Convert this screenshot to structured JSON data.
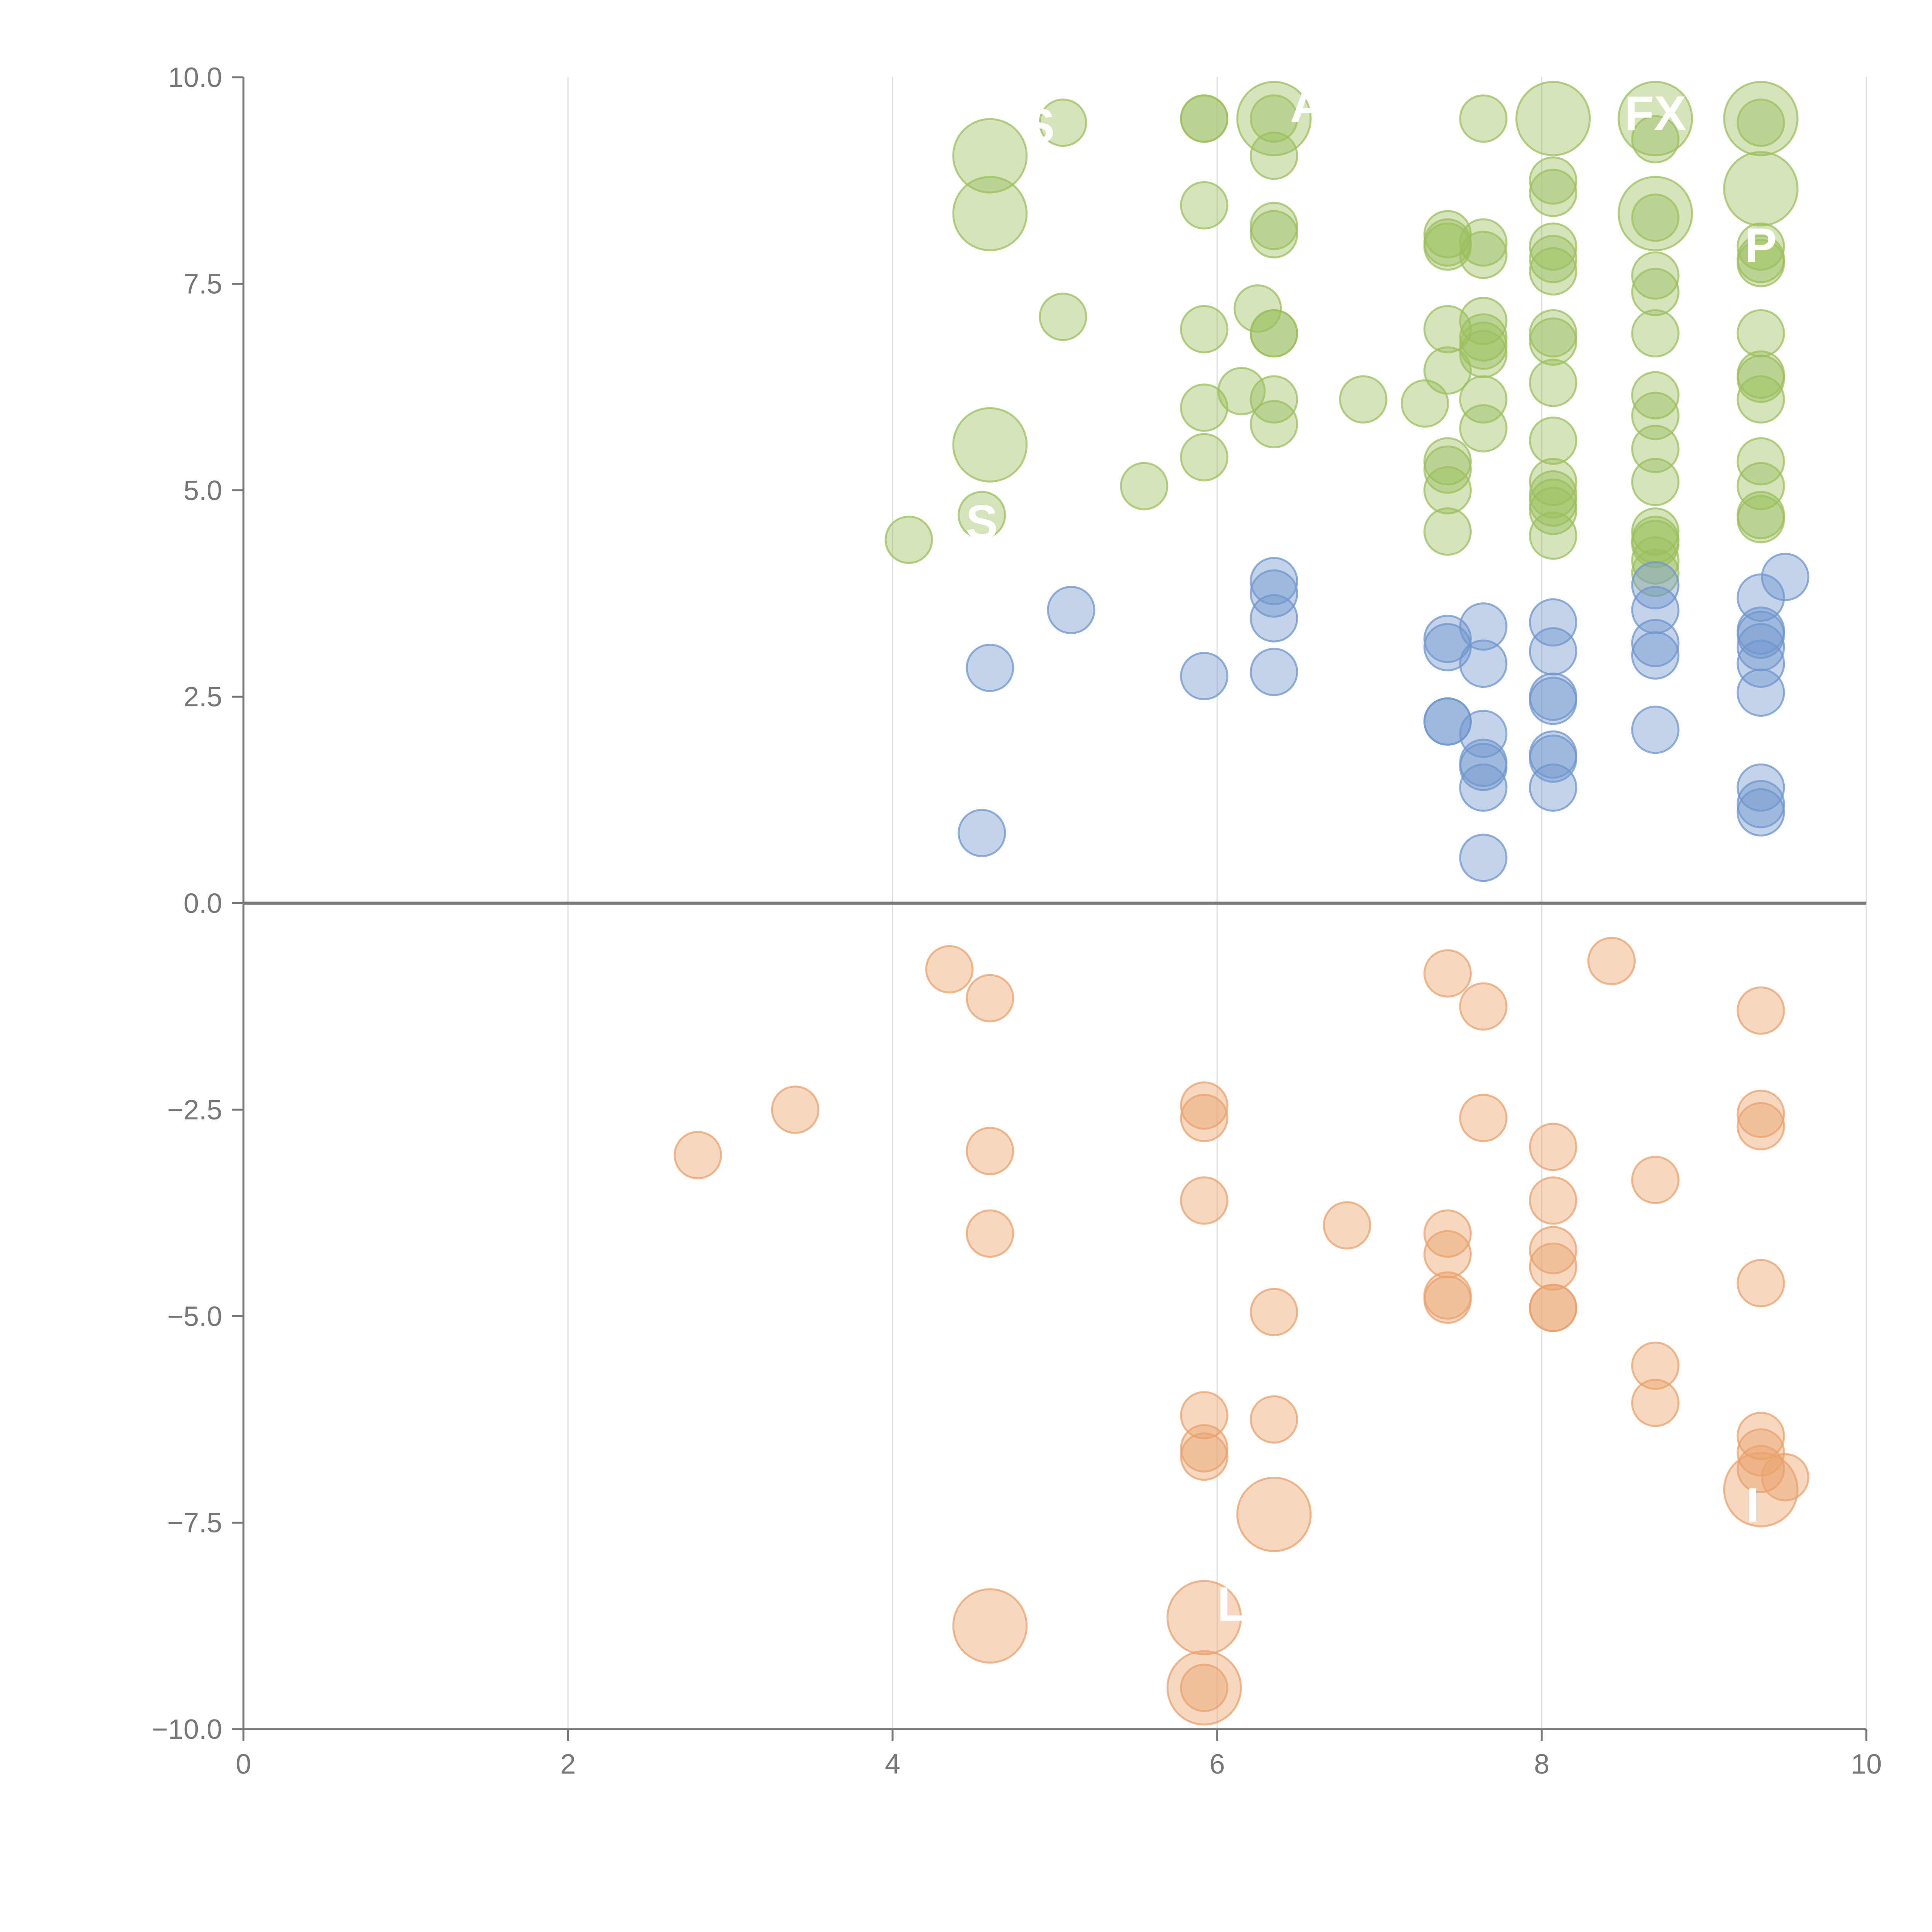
{
  "chart_data": {
    "type": "scatter",
    "title": "",
    "xlabel": "",
    "ylabel": "",
    "xlim": [
      0,
      10
    ],
    "ylim": [
      -10,
      10
    ],
    "grid": {
      "x": true,
      "y": false
    },
    "x_ticks": [
      0,
      2,
      4,
      6,
      8,
      10
    ],
    "y_ticks": [
      -10.0,
      -7.5,
      -5.0,
      -2.5,
      0.0,
      2.5,
      5.0,
      7.5,
      10.0
    ],
    "x_tick_labels": [
      "0",
      "2",
      "4",
      "6",
      "8",
      "10"
    ],
    "y_tick_labels": [
      "−10.0",
      "−7.5",
      "−5.0",
      "−2.5",
      "0.0",
      "2.5",
      "5.0",
      "7.5",
      "10.0"
    ],
    "series": [
      {
        "name": "green",
        "color": "#9cbf5d",
        "points": [
          {
            "x": 4.6,
            "y": 9.05,
            "r": 3
          },
          {
            "x": 4.6,
            "y": 8.35,
            "r": 3
          },
          {
            "x": 4.6,
            "y": 5.55,
            "r": 3
          },
          {
            "x": 5.05,
            "y": 9.45,
            "r": 1
          },
          {
            "x": 5.05,
            "y": 7.1,
            "r": 1
          },
          {
            "x": 5.55,
            "y": 5.05,
            "r": 1
          },
          {
            "x": 4.1,
            "y": 4.4,
            "r": 1
          },
          {
            "x": 4.55,
            "y": 4.7,
            "r": 1
          },
          {
            "x": 5.92,
            "y": 9.5,
            "r": 1
          },
          {
            "x": 5.92,
            "y": 9.5,
            "r": 1
          },
          {
            "x": 5.92,
            "y": 8.45,
            "r": 1
          },
          {
            "x": 5.92,
            "y": 6.95,
            "r": 1
          },
          {
            "x": 5.92,
            "y": 6.0,
            "r": 1
          },
          {
            "x": 5.92,
            "y": 5.4,
            "r": 1
          },
          {
            "x": 6.35,
            "y": 9.5,
            "r": 3
          },
          {
            "x": 6.35,
            "y": 9.5,
            "r": 1
          },
          {
            "x": 6.35,
            "y": 9.05,
            "r": 1
          },
          {
            "x": 6.35,
            "y": 8.2,
            "r": 1
          },
          {
            "x": 6.35,
            "y": 8.1,
            "r": 1
          },
          {
            "x": 6.35,
            "y": 6.9,
            "r": 1
          },
          {
            "x": 6.35,
            "y": 6.9,
            "r": 1
          },
          {
            "x": 6.35,
            "y": 6.1,
            "r": 1
          },
          {
            "x": 6.35,
            "y": 5.8,
            "r": 1
          },
          {
            "x": 6.25,
            "y": 7.2,
            "r": 1
          },
          {
            "x": 6.15,
            "y": 6.2,
            "r": 1
          },
          {
            "x": 6.9,
            "y": 6.1,
            "r": 1
          },
          {
            "x": 7.28,
            "y": 6.05,
            "r": 1
          },
          {
            "x": 7.42,
            "y": 8.1,
            "r": 1
          },
          {
            "x": 7.42,
            "y": 8.0,
            "r": 1
          },
          {
            "x": 7.42,
            "y": 7.95,
            "r": 1
          },
          {
            "x": 7.42,
            "y": 6.95,
            "r": 1
          },
          {
            "x": 7.42,
            "y": 6.45,
            "r": 1
          },
          {
            "x": 7.42,
            "y": 5.35,
            "r": 1
          },
          {
            "x": 7.42,
            "y": 5.25,
            "r": 1
          },
          {
            "x": 7.42,
            "y": 5.0,
            "r": 1
          },
          {
            "x": 7.42,
            "y": 4.5,
            "r": 1
          },
          {
            "x": 7.64,
            "y": 9.5,
            "r": 1
          },
          {
            "x": 7.64,
            "y": 8.0,
            "r": 1
          },
          {
            "x": 7.64,
            "y": 7.85,
            "r": 1
          },
          {
            "x": 7.64,
            "y": 7.05,
            "r": 1
          },
          {
            "x": 7.64,
            "y": 6.85,
            "r": 1
          },
          {
            "x": 7.64,
            "y": 6.75,
            "r": 1
          },
          {
            "x": 7.64,
            "y": 6.65,
            "r": 1
          },
          {
            "x": 7.64,
            "y": 6.1,
            "r": 1
          },
          {
            "x": 7.64,
            "y": 5.75,
            "r": 1
          },
          {
            "x": 8.07,
            "y": 9.5,
            "r": 3
          },
          {
            "x": 8.07,
            "y": 8.75,
            "r": 1
          },
          {
            "x": 8.07,
            "y": 8.6,
            "r": 1
          },
          {
            "x": 8.07,
            "y": 7.95,
            "r": 1
          },
          {
            "x": 8.07,
            "y": 7.8,
            "r": 1
          },
          {
            "x": 8.07,
            "y": 7.65,
            "r": 1
          },
          {
            "x": 8.07,
            "y": 6.9,
            "r": 1
          },
          {
            "x": 8.07,
            "y": 6.8,
            "r": 1
          },
          {
            "x": 8.07,
            "y": 6.3,
            "r": 1
          },
          {
            "x": 8.07,
            "y": 5.6,
            "r": 1
          },
          {
            "x": 8.07,
            "y": 5.1,
            "r": 1
          },
          {
            "x": 8.07,
            "y": 4.95,
            "r": 1
          },
          {
            "x": 8.07,
            "y": 4.85,
            "r": 1
          },
          {
            "x": 8.07,
            "y": 4.75,
            "r": 1
          },
          {
            "x": 8.07,
            "y": 4.45,
            "r": 1
          },
          {
            "x": 8.7,
            "y": 9.5,
            "r": 3
          },
          {
            "x": 8.7,
            "y": 9.25,
            "r": 1
          },
          {
            "x": 8.7,
            "y": 8.35,
            "r": 3
          },
          {
            "x": 8.7,
            "y": 8.3,
            "r": 1
          },
          {
            "x": 8.7,
            "y": 7.6,
            "r": 1
          },
          {
            "x": 8.7,
            "y": 7.4,
            "r": 1
          },
          {
            "x": 8.7,
            "y": 6.9,
            "r": 1
          },
          {
            "x": 8.7,
            "y": 6.15,
            "r": 1
          },
          {
            "x": 8.7,
            "y": 5.9,
            "r": 1
          },
          {
            "x": 8.7,
            "y": 5.5,
            "r": 1
          },
          {
            "x": 8.7,
            "y": 5.1,
            "r": 1
          },
          {
            "x": 8.7,
            "y": 4.5,
            "r": 1
          },
          {
            "x": 8.7,
            "y": 4.4,
            "r": 1
          },
          {
            "x": 8.7,
            "y": 4.35,
            "r": 1
          },
          {
            "x": 8.7,
            "y": 4.15,
            "r": 1
          },
          {
            "x": 8.7,
            "y": 4.0,
            "r": 1
          },
          {
            "x": 9.35,
            "y": 9.5,
            "r": 3
          },
          {
            "x": 9.35,
            "y": 9.45,
            "r": 1
          },
          {
            "x": 9.35,
            "y": 8.65,
            "r": 3
          },
          {
            "x": 9.35,
            "y": 7.95,
            "r": 1
          },
          {
            "x": 9.35,
            "y": 7.8,
            "r": 1
          },
          {
            "x": 9.35,
            "y": 7.75,
            "r": 1
          },
          {
            "x": 9.35,
            "y": 6.9,
            "r": 1
          },
          {
            "x": 9.35,
            "y": 6.4,
            "r": 1
          },
          {
            "x": 9.35,
            "y": 6.35,
            "r": 1
          },
          {
            "x": 9.35,
            "y": 6.1,
            "r": 1
          },
          {
            "x": 9.35,
            "y": 5.35,
            "r": 1
          },
          {
            "x": 9.35,
            "y": 5.05,
            "r": 1
          },
          {
            "x": 9.35,
            "y": 4.7,
            "r": 1
          },
          {
            "x": 9.35,
            "y": 4.65,
            "r": 1
          }
        ]
      },
      {
        "name": "blue",
        "color": "#6f95cc",
        "points": [
          {
            "x": 4.55,
            "y": 0.85,
            "r": 1
          },
          {
            "x": 4.6,
            "y": 2.85,
            "r": 1
          },
          {
            "x": 5.1,
            "y": 3.55,
            "r": 1
          },
          {
            "x": 5.92,
            "y": 2.75,
            "r": 1
          },
          {
            "x": 6.35,
            "y": 3.9,
            "r": 1
          },
          {
            "x": 6.35,
            "y": 3.75,
            "r": 1
          },
          {
            "x": 6.35,
            "y": 3.45,
            "r": 1
          },
          {
            "x": 6.35,
            "y": 2.8,
            "r": 1
          },
          {
            "x": 7.42,
            "y": 3.2,
            "r": 1
          },
          {
            "x": 7.42,
            "y": 3.1,
            "r": 1
          },
          {
            "x": 7.42,
            "y": 2.2,
            "r": 1
          },
          {
            "x": 7.42,
            "y": 2.2,
            "r": 1
          },
          {
            "x": 7.64,
            "y": 3.35,
            "r": 1
          },
          {
            "x": 7.64,
            "y": 2.9,
            "r": 1
          },
          {
            "x": 7.64,
            "y": 2.05,
            "r": 1
          },
          {
            "x": 7.64,
            "y": 1.7,
            "r": 1
          },
          {
            "x": 7.64,
            "y": 1.65,
            "r": 1
          },
          {
            "x": 7.64,
            "y": 1.4,
            "r": 1
          },
          {
            "x": 7.64,
            "y": 0.55,
            "r": 1
          },
          {
            "x": 8.07,
            "y": 3.4,
            "r": 1
          },
          {
            "x": 8.07,
            "y": 3.05,
            "r": 1
          },
          {
            "x": 8.07,
            "y": 2.5,
            "r": 1
          },
          {
            "x": 8.07,
            "y": 2.45,
            "r": 1
          },
          {
            "x": 8.07,
            "y": 1.8,
            "r": 1
          },
          {
            "x": 8.07,
            "y": 1.75,
            "r": 1
          },
          {
            "x": 8.07,
            "y": 1.4,
            "r": 1
          },
          {
            "x": 8.7,
            "y": 3.85,
            "r": 1
          },
          {
            "x": 8.7,
            "y": 3.55,
            "r": 1
          },
          {
            "x": 8.7,
            "y": 3.15,
            "r": 1
          },
          {
            "x": 8.7,
            "y": 3.0,
            "r": 1
          },
          {
            "x": 8.7,
            "y": 2.1,
            "r": 1
          },
          {
            "x": 9.35,
            "y": 3.7,
            "r": 1
          },
          {
            "x": 9.35,
            "y": 3.3,
            "r": 1
          },
          {
            "x": 9.35,
            "y": 3.25,
            "r": 1
          },
          {
            "x": 9.35,
            "y": 3.1,
            "r": 1
          },
          {
            "x": 9.35,
            "y": 2.9,
            "r": 1
          },
          {
            "x": 9.35,
            "y": 2.55,
            "r": 1
          },
          {
            "x": 9.35,
            "y": 1.4,
            "r": 1
          },
          {
            "x": 9.35,
            "y": 1.2,
            "r": 1
          },
          {
            "x": 9.35,
            "y": 1.1,
            "r": 1
          },
          {
            "x": 9.5,
            "y": 3.95,
            "r": 1
          }
        ]
      },
      {
        "name": "orange",
        "color": "#e9a26c",
        "points": [
          {
            "x": 2.8,
            "y": -3.05,
            "r": 1
          },
          {
            "x": 3.4,
            "y": -2.5,
            "r": 1
          },
          {
            "x": 4.35,
            "y": -0.8,
            "r": 1
          },
          {
            "x": 4.6,
            "y": -1.15,
            "r": 1
          },
          {
            "x": 4.6,
            "y": -3.0,
            "r": 1
          },
          {
            "x": 4.6,
            "y": -4.0,
            "r": 1
          },
          {
            "x": 4.6,
            "y": -8.75,
            "r": 3
          },
          {
            "x": 5.92,
            "y": -2.45,
            "r": 1
          },
          {
            "x": 5.92,
            "y": -2.6,
            "r": 1
          },
          {
            "x": 5.92,
            "y": -3.6,
            "r": 1
          },
          {
            "x": 5.92,
            "y": -6.2,
            "r": 1
          },
          {
            "x": 5.92,
            "y": -6.6,
            "r": 1
          },
          {
            "x": 5.92,
            "y": -6.7,
            "r": 1
          },
          {
            "x": 5.92,
            "y": -8.65,
            "r": 3
          },
          {
            "x": 5.92,
            "y": -9.5,
            "r": 3
          },
          {
            "x": 5.92,
            "y": -9.5,
            "r": 1
          },
          {
            "x": 6.35,
            "y": -4.95,
            "r": 1
          },
          {
            "x": 6.35,
            "y": -6.25,
            "r": 1
          },
          {
            "x": 6.35,
            "y": -7.4,
            "r": 3
          },
          {
            "x": 6.8,
            "y": -3.9,
            "r": 1
          },
          {
            "x": 7.42,
            "y": -0.85,
            "r": 1
          },
          {
            "x": 7.42,
            "y": -4.0,
            "r": 1
          },
          {
            "x": 7.42,
            "y": -4.25,
            "r": 1
          },
          {
            "x": 7.42,
            "y": -4.75,
            "r": 1
          },
          {
            "x": 7.42,
            "y": -4.8,
            "r": 1
          },
          {
            "x": 7.64,
            "y": -1.25,
            "r": 1
          },
          {
            "x": 7.64,
            "y": -2.6,
            "r": 1
          },
          {
            "x": 8.07,
            "y": -2.95,
            "r": 1
          },
          {
            "x": 8.07,
            "y": -3.6,
            "r": 1
          },
          {
            "x": 8.07,
            "y": -4.2,
            "r": 1
          },
          {
            "x": 8.07,
            "y": -4.4,
            "r": 1
          },
          {
            "x": 8.07,
            "y": -4.9,
            "r": 1
          },
          {
            "x": 8.07,
            "y": -4.9,
            "r": 1
          },
          {
            "x": 8.43,
            "y": -0.7,
            "r": 1
          },
          {
            "x": 8.7,
            "y": -3.35,
            "r": 1
          },
          {
            "x": 8.7,
            "y": -5.6,
            "r": 1
          },
          {
            "x": 8.7,
            "y": -6.05,
            "r": 1
          },
          {
            "x": 9.35,
            "y": -1.3,
            "r": 1
          },
          {
            "x": 9.35,
            "y": -2.55,
            "r": 1
          },
          {
            "x": 9.35,
            "y": -2.7,
            "r": 1
          },
          {
            "x": 9.35,
            "y": -4.6,
            "r": 1
          },
          {
            "x": 9.35,
            "y": -6.45,
            "r": 1
          },
          {
            "x": 9.35,
            "y": -6.65,
            "r": 1
          },
          {
            "x": 9.35,
            "y": -6.85,
            "r": 1
          },
          {
            "x": 9.35,
            "y": -7.1,
            "r": 3
          },
          {
            "x": 9.5,
            "y": -6.95,
            "r": 1
          }
        ]
      }
    ],
    "annotations": [
      {
        "text": "FX",
        "x": 8.7,
        "y": 9.55,
        "anchor": "middle"
      },
      {
        "text": "A",
        "x": 6.45,
        "y": 9.65,
        "anchor": "start"
      },
      {
        "text": "S",
        "x": 4.55,
        "y": 4.6,
        "anchor": "middle"
      },
      {
        "text": "P",
        "x": 9.35,
        "y": 7.95,
        "anchor": "middle"
      },
      {
        "text": "S",
        "x": 4.9,
        "y": 9.4,
        "anchor": "middle"
      },
      {
        "text": "L",
        "x": 6.0,
        "y": -8.5,
        "anchor": "start"
      },
      {
        "text": "I",
        "x": 9.3,
        "y": -7.3,
        "anchor": "middle"
      }
    ]
  }
}
